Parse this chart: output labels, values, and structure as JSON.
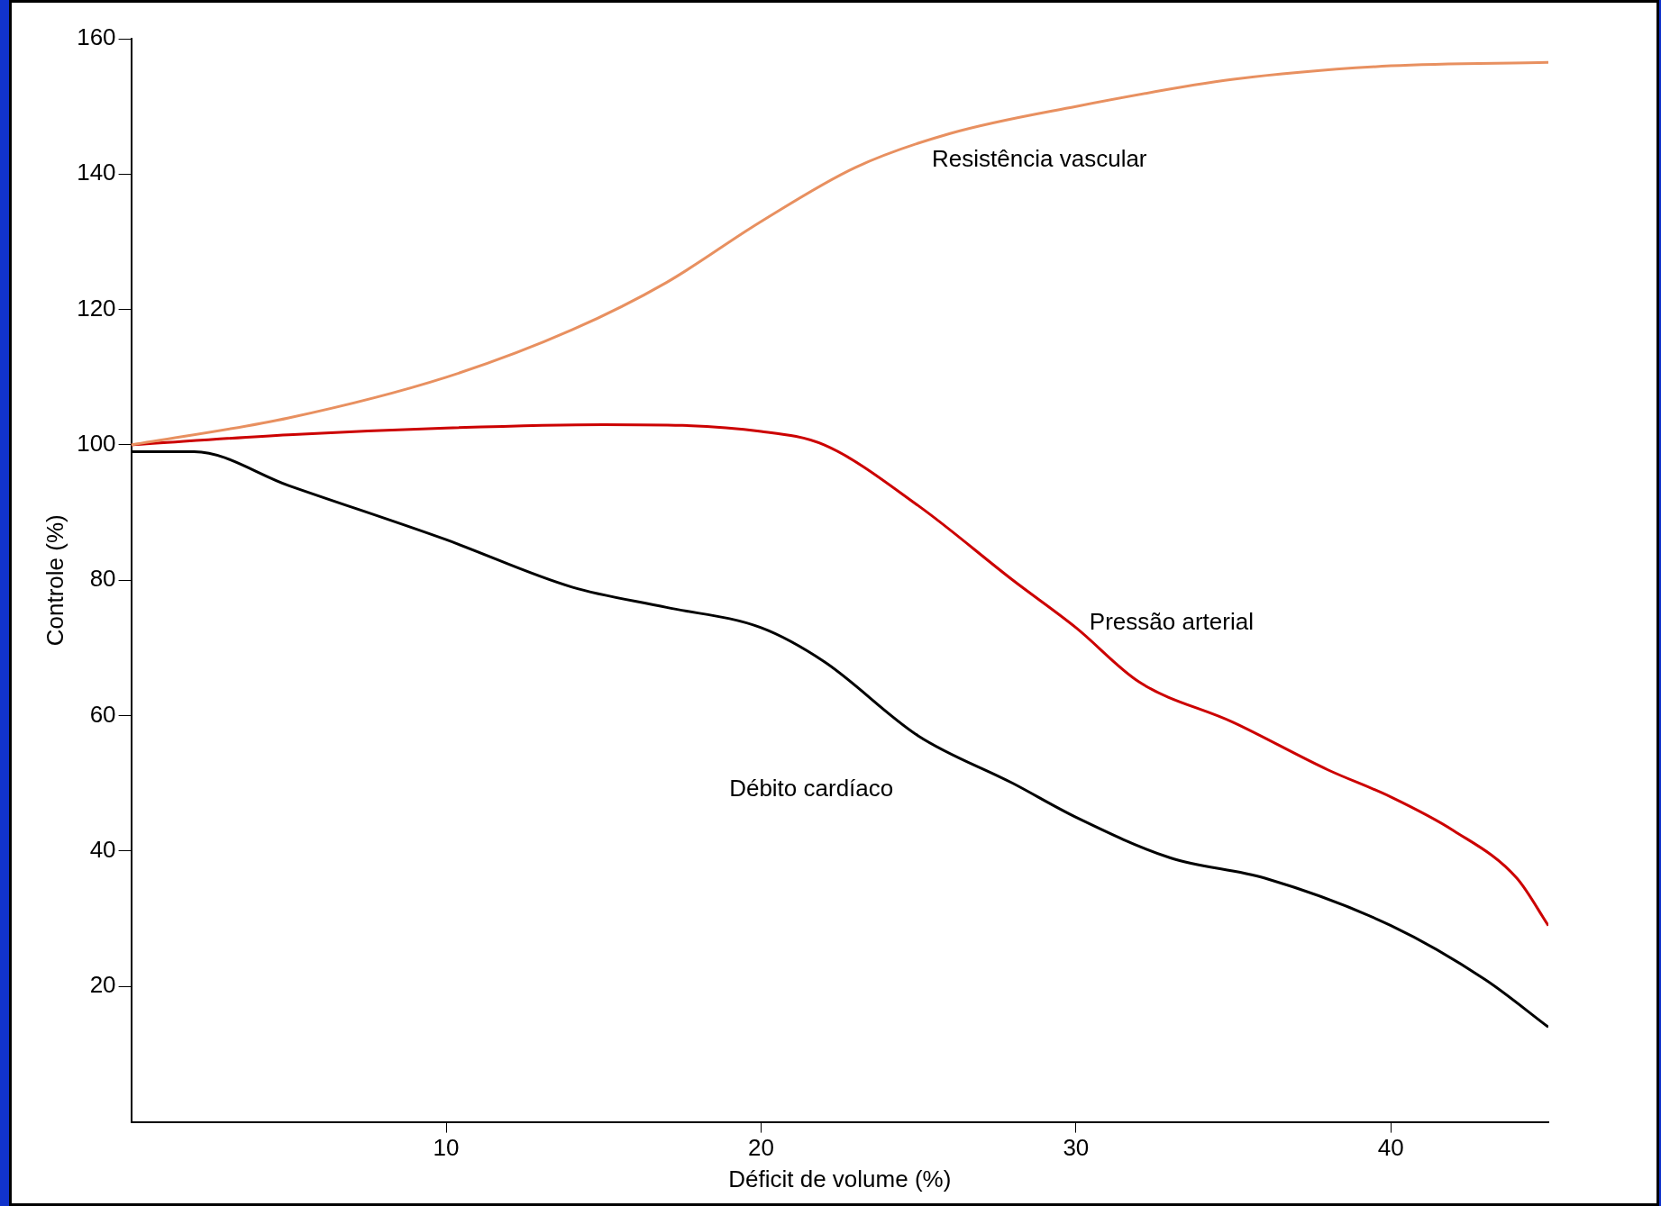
{
  "chart_data": {
    "type": "line",
    "xlabel": "Déficit de volume (%)",
    "ylabel": "Controle (%)",
    "xlim": [
      0,
      45
    ],
    "xticks": [
      10,
      20,
      30,
      40
    ],
    "ylim": [
      0,
      160
    ],
    "yticks": [
      20,
      40,
      60,
      80,
      100,
      120,
      140,
      160
    ],
    "grid": false,
    "legend": false,
    "marker": "none",
    "series": [
      {
        "name": "Resistência vascular",
        "color": "#e89060",
        "x": [
          0,
          5,
          10,
          14,
          17,
          20,
          23,
          26,
          30,
          35,
          40,
          45
        ],
        "values": [
          100,
          104,
          110,
          117,
          124,
          133,
          141,
          146,
          150,
          154,
          156,
          156.5
        ]
      },
      {
        "name": "Pressão arterial",
        "color": "#cc0000",
        "x": [
          0,
          5,
          10,
          15,
          20,
          22,
          25,
          28,
          30,
          32,
          35,
          38,
          40,
          42,
          44,
          45
        ],
        "values": [
          100,
          101.5,
          102.5,
          103,
          102,
          100,
          91,
          80,
          73,
          65,
          59,
          52,
          48,
          43,
          36,
          29
        ]
      },
      {
        "name": "Débito cardíaco",
        "color": "#000000",
        "x": [
          0,
          2,
          5,
          10,
          14,
          17,
          20,
          22,
          25,
          28,
          30,
          33,
          36,
          40,
          43,
          45
        ],
        "values": [
          99,
          99,
          94,
          86,
          79,
          76,
          73,
          68,
          57,
          50,
          45,
          39,
          36,
          29,
          21,
          14
        ]
      }
    ]
  }
}
